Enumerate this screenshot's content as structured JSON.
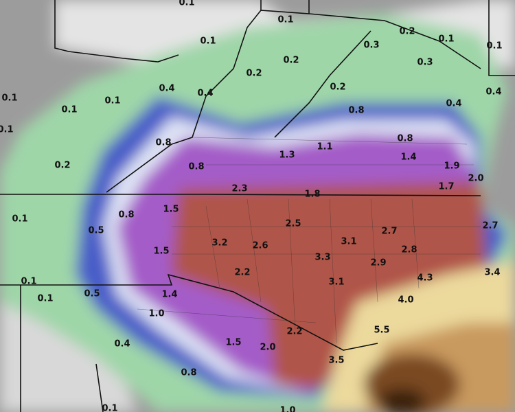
{
  "map": {
    "labels": [
      "0.1",
      "0.1",
      "0.2",
      "0.1",
      "0.1",
      "0.1",
      "0.3",
      "0.3",
      "0.2",
      "0.2",
      "0.2",
      "0.4",
      "0.4",
      "0.4",
      "0.4",
      "0.1",
      "0.1",
      "0.1",
      "0.1",
      "0.8",
      "0.8",
      "0.8",
      "1.1",
      "1.3",
      "1.4",
      "1.9",
      "0.2",
      "0.8",
      "2.0",
      "1.7",
      "2.3",
      "1.8",
      "0.1",
      "0.8",
      "1.5",
      "2.5",
      "2.7",
      "2.7",
      "0.5",
      "3.2",
      "2.6",
      "3.1",
      "2.8",
      "1.5",
      "3.3",
      "2.9",
      "2.2",
      "3.4",
      "4.3",
      "0.1",
      "3.1",
      "0.5",
      "1.4",
      "0.1",
      "4.0",
      "1.0",
      "5.5",
      "2.2",
      "0.4",
      "1.5",
      "2.0",
      "3.5",
      "0.8",
      "0.1",
      "1.0"
    ]
  }
}
